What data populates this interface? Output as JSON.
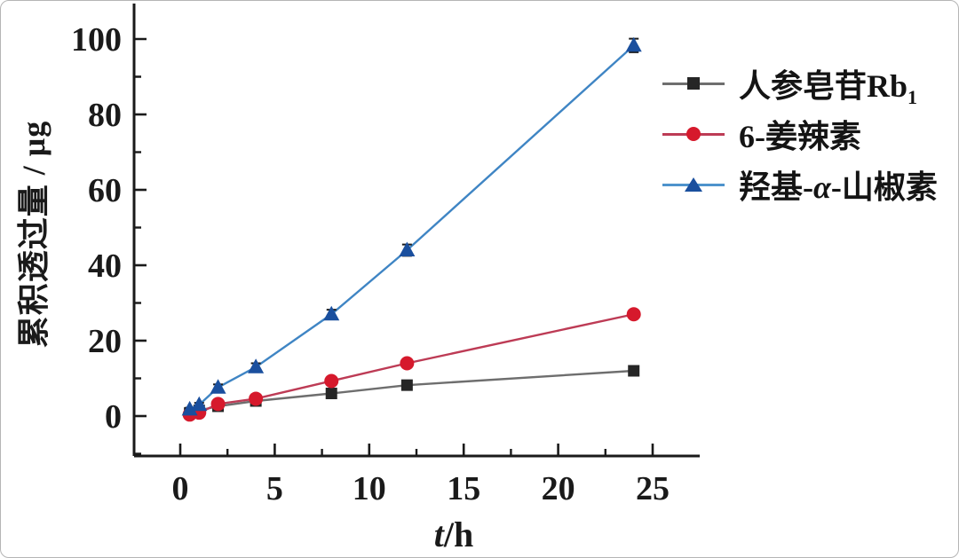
{
  "figure": {
    "background": "#ffffff",
    "border_color": "#b5b5b5",
    "axis_color": "#1a1a1a"
  },
  "axis_labels": {
    "y": "累积透过量 / μg",
    "x_italic": "t",
    "x_rest": "/h"
  },
  "legend": {
    "position": "upper right",
    "items": [
      {
        "id": "ginsenoside-rb1",
        "label_prefix": "人参皂苷Rb",
        "label_italic": "",
        "label_suffix": "",
        "label_sub": "1",
        "marker": "square",
        "marker_color": "#262626",
        "line_color": "#6e6e6e"
      },
      {
        "id": "6-gingerol",
        "label_prefix": "6-姜辣素",
        "label_italic": "",
        "label_suffix": "",
        "label_sub": "",
        "marker": "circle",
        "marker_color": "#d6192c",
        "line_color": "#bd3b55"
      },
      {
        "id": "hydroxy-alpha-sanshool",
        "label_prefix": "羟基-",
        "label_italic": "α",
        "label_suffix": "-山椒素",
        "label_sub": "",
        "marker": "triangle",
        "marker_color": "#1a4f9e",
        "line_color": "#4e93cc"
      }
    ]
  },
  "chart_data": {
    "type": "line",
    "title": "",
    "xlabel": "t/h",
    "ylabel": "累积透过量 / μg",
    "grid": false,
    "legend_position": "upper right",
    "xlim": [
      -2.5,
      27.5
    ],
    "ylim": [
      -10.6,
      109
    ],
    "x_major_ticks": [
      0,
      5,
      10,
      15,
      20,
      25
    ],
    "x_minor_ticks": [
      -2.5,
      2.5,
      7.5,
      12.5,
      17.5,
      22.5,
      27.5
    ],
    "y_major_ticks": [
      0,
      20,
      40,
      60,
      80,
      100
    ],
    "y_minor_ticks": [
      -10,
      10,
      30,
      50,
      70,
      90,
      110
    ],
    "x": [
      0.5,
      1,
      2,
      4,
      8,
      12,
      24
    ],
    "series": [
      {
        "name": "人参皂苷Rb1",
        "marker": "square",
        "marker_color": "#262626",
        "line_color": "#6e6e6e",
        "values": [
          0.8,
          1.5,
          2.6,
          4.0,
          6.0,
          8.2,
          12.0
        ],
        "errors": [
          0.3,
          0.3,
          0.4,
          0.4,
          0.5,
          0.6,
          0.9
        ]
      },
      {
        "name": "6-姜辣素",
        "marker": "circle",
        "marker_color": "#d6192c",
        "line_color": "#bd3b55",
        "values": [
          0.4,
          0.9,
          3.2,
          4.6,
          9.3,
          14.0,
          27.0
        ],
        "errors": [
          0.3,
          0.3,
          0.4,
          0.5,
          0.6,
          0.8,
          1.0
        ]
      },
      {
        "name": "羟基-α-山椒素",
        "marker": "triangle",
        "marker_color": "#1a4f9e",
        "line_color": "#3f85c4",
        "values": [
          1.8,
          3.0,
          7.6,
          13.0,
          27.0,
          44.0,
          98.3
        ],
        "errors": [
          0.4,
          0.5,
          0.8,
          1.0,
          1.2,
          1.5,
          1.8
        ]
      }
    ]
  }
}
